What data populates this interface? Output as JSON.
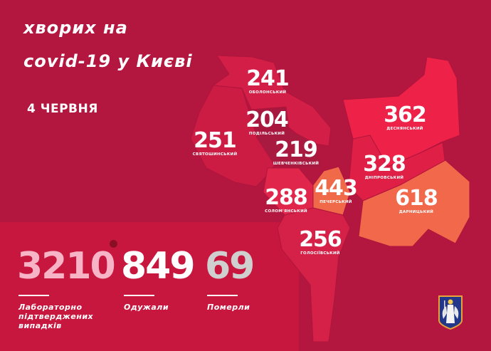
{
  "header": {
    "line1": "хворих на",
    "line2": "covid-19 у Києві",
    "date": "4 ЧЕРВНЯ"
  },
  "districts": [
    {
      "name": "ОБОЛОНСЬКИЙ",
      "count": "241",
      "color": "#d31f47"
    },
    {
      "name": "ПОДІЛЬСЬКИЙ",
      "count": "204",
      "color": "#a8173d"
    },
    {
      "name": "СВЯТОШИНСЬКИЙ",
      "count": "251",
      "color": "#cc1c44"
    },
    {
      "name": "ШЕВЧЕНКІВСЬКИЙ",
      "count": "219",
      "color": "#a91a40"
    },
    {
      "name": "СОЛОМ'ЯНСЬКИЙ",
      "count": "288",
      "color": "#e0264a"
    },
    {
      "name": "ПЕЧЕРСЬКИЙ",
      "count": "443",
      "color": "#f06a4a"
    },
    {
      "name": "ГОЛОСІЇВСЬКИЙ",
      "count": "256",
      "color": "#d52047"
    },
    {
      "name": "ДЕСНЯНСЬКИЙ",
      "count": "362",
      "color": "#ee2148"
    },
    {
      "name": "ДНІПРОВСЬКИЙ",
      "count": "328",
      "color": "#e01f47"
    },
    {
      "name": "ДАРНИЦЬКИЙ",
      "count": "618",
      "color": "#f2684a"
    }
  ],
  "totals": {
    "confirmed": {
      "value": "3210",
      "label1": "Лабораторно",
      "label2": "підтверджених",
      "label3": "випадків",
      "color": "#f6b4c6"
    },
    "recovered": {
      "value": "849",
      "label": "Одужали",
      "color": "#ffffff"
    },
    "deaths": {
      "value": "69",
      "label": "Померли",
      "color": "#cfcfcf"
    }
  },
  "icons": [
    "virus-icon",
    "kyiv-coat-of-arms-icon"
  ]
}
